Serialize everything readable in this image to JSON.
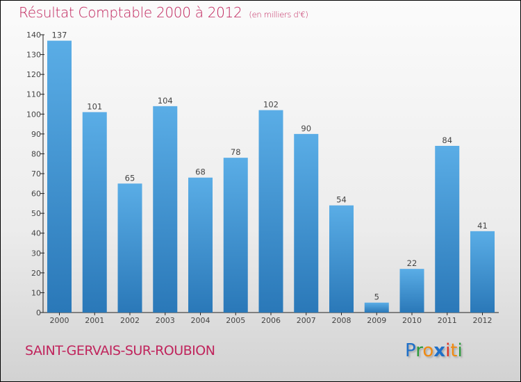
{
  "chart_data": {
    "type": "bar",
    "title": "Résultat Comptable 2000 à 2012",
    "unit": "(en milliers d'€)",
    "categories": [
      "2000",
      "2001",
      "2002",
      "2003",
      "2004",
      "2005",
      "2006",
      "2007",
      "2008",
      "2009",
      "2010",
      "2011",
      "2012"
    ],
    "values": [
      137,
      101,
      65,
      104,
      68,
      78,
      102,
      90,
      54,
      5,
      22,
      84,
      41
    ],
    "ylim": [
      0,
      140
    ],
    "yticks": [
      0,
      10,
      20,
      30,
      40,
      50,
      60,
      70,
      80,
      90,
      100,
      110,
      120,
      130,
      140
    ],
    "xlabel": "",
    "ylabel": "",
    "bar_color_top": "#5aade6",
    "bar_color_bottom": "#2a78b8"
  },
  "commune": "SAINT-GERVAIS-SUR-ROUBION",
  "logo": "Proxiti"
}
